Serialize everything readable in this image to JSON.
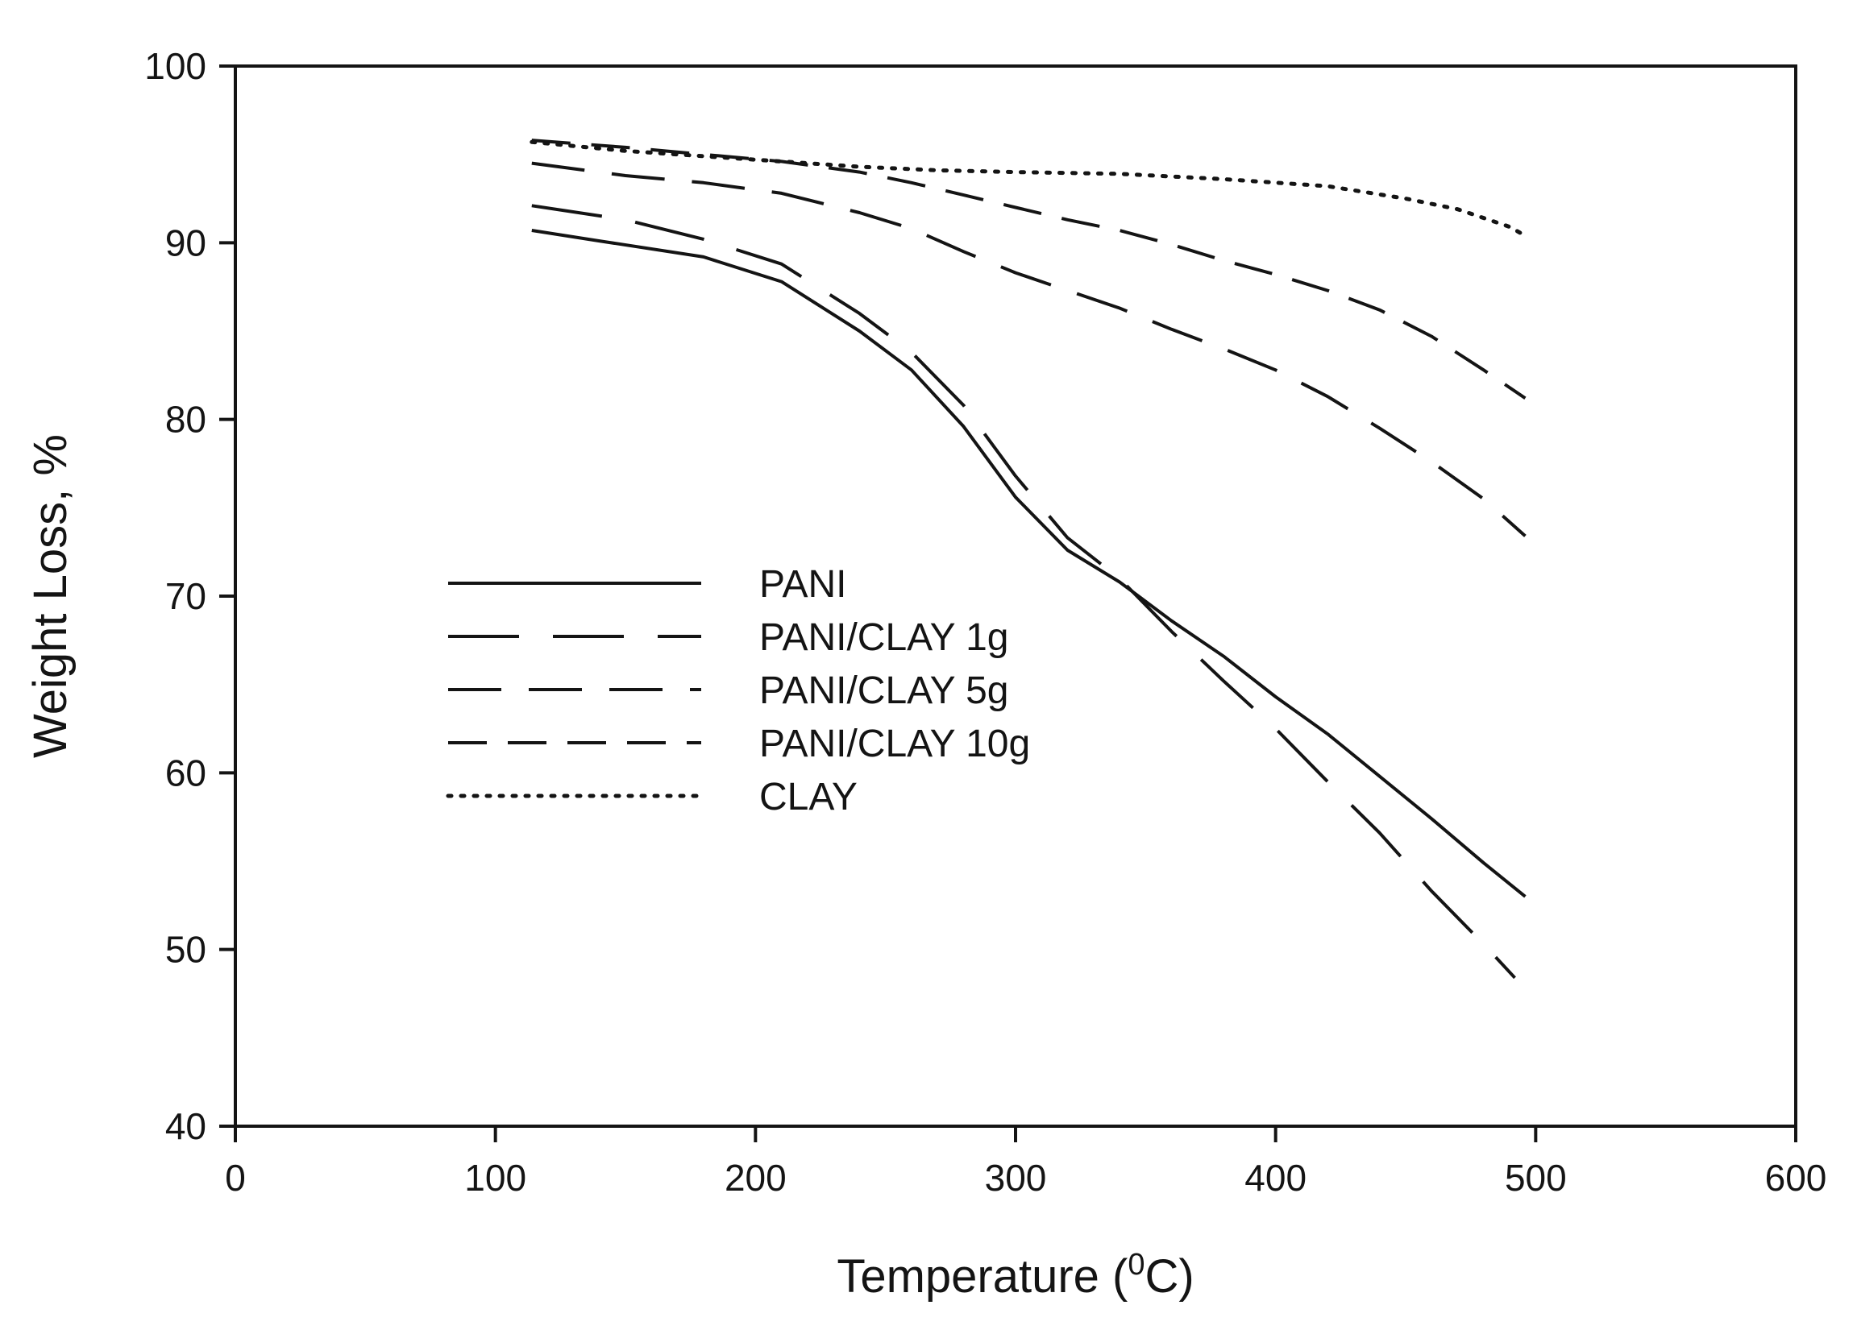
{
  "chart_data": {
    "type": "line",
    "title": "",
    "xlabel": "Temperature (",
    "xlabel_superscript": "0",
    "xlabel_suffix": "C)",
    "ylabel": "Weight Loss, %",
    "xlim": [
      0,
      600
    ],
    "ylim": [
      40,
      100
    ],
    "xticks": [
      0,
      100,
      200,
      300,
      400,
      500,
      600
    ],
    "yticks": [
      40,
      50,
      60,
      70,
      80,
      90,
      100
    ],
    "grid": false,
    "legend_position": "center-left",
    "line_color": "#141414",
    "series": [
      {
        "name": "PANI",
        "style": "solid",
        "points": [
          [
            114,
            90.7
          ],
          [
            140,
            90.1
          ],
          [
            180,
            89.2
          ],
          [
            210,
            87.8
          ],
          [
            240,
            85.0
          ],
          [
            260,
            82.8
          ],
          [
            280,
            79.6
          ],
          [
            300,
            75.6
          ],
          [
            320,
            72.6
          ],
          [
            340,
            70.8
          ],
          [
            360,
            68.6
          ],
          [
            380,
            66.6
          ],
          [
            400,
            64.3
          ],
          [
            420,
            62.2
          ],
          [
            440,
            59.8
          ],
          [
            460,
            57.4
          ],
          [
            480,
            54.9
          ],
          [
            496,
            53.0
          ]
        ]
      },
      {
        "name": "PANI/CLAY 1g",
        "style": "long-dash",
        "points": [
          [
            114,
            92.1
          ],
          [
            150,
            91.3
          ],
          [
            180,
            90.2
          ],
          [
            210,
            88.8
          ],
          [
            240,
            86.0
          ],
          [
            260,
            83.8
          ],
          [
            280,
            80.8
          ],
          [
            300,
            76.8
          ],
          [
            320,
            73.3
          ],
          [
            340,
            71.0
          ],
          [
            360,
            68.0
          ],
          [
            380,
            65.2
          ],
          [
            400,
            62.5
          ],
          [
            420,
            59.5
          ],
          [
            440,
            56.6
          ],
          [
            460,
            53.3
          ],
          [
            480,
            50.3
          ],
          [
            492,
            48.4
          ]
        ]
      },
      {
        "name": "PANI/CLAY 5g",
        "style": "medium-dash",
        "points": [
          [
            114,
            94.5
          ],
          [
            150,
            93.8
          ],
          [
            180,
            93.4
          ],
          [
            210,
            92.8
          ],
          [
            240,
            91.7
          ],
          [
            260,
            90.8
          ],
          [
            280,
            89.5
          ],
          [
            300,
            88.3
          ],
          [
            320,
            87.3
          ],
          [
            340,
            86.3
          ],
          [
            360,
            85.1
          ],
          [
            380,
            84.0
          ],
          [
            400,
            82.8
          ],
          [
            420,
            81.3
          ],
          [
            440,
            79.5
          ],
          [
            460,
            77.6
          ],
          [
            480,
            75.5
          ],
          [
            496,
            73.4
          ]
        ]
      },
      {
        "name": "PANI/CLAY 10g",
        "style": "short-dash",
        "points": [
          [
            114,
            95.8
          ],
          [
            150,
            95.4
          ],
          [
            180,
            95.0
          ],
          [
            210,
            94.6
          ],
          [
            240,
            94.0
          ],
          [
            260,
            93.4
          ],
          [
            280,
            92.7
          ],
          [
            300,
            92.0
          ],
          [
            320,
            91.3
          ],
          [
            340,
            90.7
          ],
          [
            360,
            89.9
          ],
          [
            380,
            89.0
          ],
          [
            400,
            88.2
          ],
          [
            420,
            87.3
          ],
          [
            440,
            86.2
          ],
          [
            460,
            84.7
          ],
          [
            480,
            82.8
          ],
          [
            496,
            81.2
          ]
        ]
      },
      {
        "name": "CLAY",
        "style": "dotted",
        "points": [
          [
            114,
            95.7
          ],
          [
            150,
            95.2
          ],
          [
            180,
            94.9
          ],
          [
            210,
            94.6
          ],
          [
            240,
            94.3
          ],
          [
            270,
            94.1
          ],
          [
            300,
            94.0
          ],
          [
            340,
            93.9
          ],
          [
            380,
            93.6
          ],
          [
            420,
            93.2
          ],
          [
            450,
            92.5
          ],
          [
            470,
            91.9
          ],
          [
            490,
            90.9
          ],
          [
            496,
            90.4
          ]
        ]
      }
    ]
  }
}
